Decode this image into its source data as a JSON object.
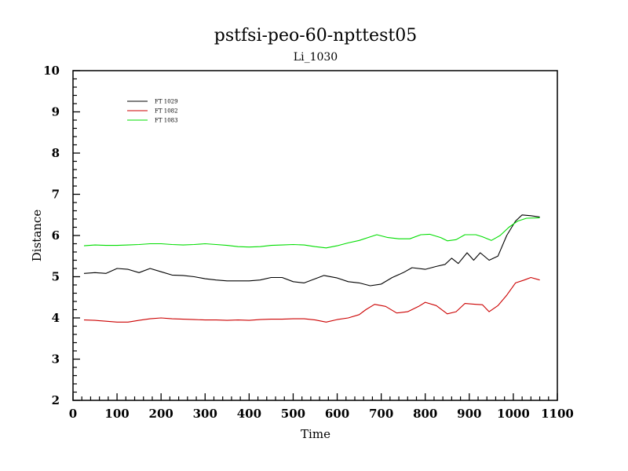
{
  "chart_data": {
    "type": "line",
    "title": "pstfsi-peo-60-npttest05",
    "subtitle": "Li_1030",
    "xlabel": "Time",
    "ylabel": "Distance",
    "xlim": [
      0,
      1100
    ],
    "ylim": [
      2,
      10
    ],
    "x_ticks": [
      "0",
      "100",
      "200",
      "300",
      "400",
      "500",
      "600",
      "700",
      "800",
      "900",
      "1000",
      "1100"
    ],
    "y_ticks": [
      "2",
      "3",
      "4",
      "5",
      "6",
      "7",
      "8",
      "9",
      "10"
    ],
    "legend_position": "top-left",
    "grid": false,
    "series": [
      {
        "name": "FT 1029",
        "color": "#000000",
        "points": [
          [
            25,
            5.08
          ],
          [
            50,
            5.1
          ],
          [
            75,
            5.08
          ],
          [
            100,
            5.2
          ],
          [
            125,
            5.18
          ],
          [
            150,
            5.1
          ],
          [
            175,
            5.2
          ],
          [
            200,
            5.12
          ],
          [
            225,
            5.04
          ],
          [
            250,
            5.03
          ],
          [
            275,
            5.0
          ],
          [
            300,
            4.95
          ],
          [
            325,
            4.92
          ],
          [
            350,
            4.9
          ],
          [
            375,
            4.9
          ],
          [
            400,
            4.9
          ],
          [
            425,
            4.92
          ],
          [
            450,
            4.98
          ],
          [
            475,
            4.98
          ],
          [
            500,
            4.88
          ],
          [
            525,
            4.85
          ],
          [
            550,
            4.95
          ],
          [
            570,
            5.03
          ],
          [
            600,
            4.97
          ],
          [
            625,
            4.88
          ],
          [
            650,
            4.85
          ],
          [
            675,
            4.78
          ],
          [
            700,
            4.82
          ],
          [
            725,
            4.98
          ],
          [
            750,
            5.1
          ],
          [
            770,
            5.22
          ],
          [
            800,
            5.18
          ],
          [
            825,
            5.25
          ],
          [
            845,
            5.3
          ],
          [
            860,
            5.45
          ],
          [
            875,
            5.32
          ],
          [
            895,
            5.58
          ],
          [
            910,
            5.4
          ],
          [
            925,
            5.58
          ],
          [
            945,
            5.4
          ],
          [
            965,
            5.5
          ],
          [
            985,
            6.0
          ],
          [
            1005,
            6.35
          ],
          [
            1020,
            6.5
          ],
          [
            1040,
            6.48
          ],
          [
            1060,
            6.45
          ]
        ]
      },
      {
        "name": "FT 1082",
        "color": "#cc0000",
        "points": [
          [
            25,
            3.95
          ],
          [
            50,
            3.94
          ],
          [
            75,
            3.92
          ],
          [
            100,
            3.9
          ],
          [
            125,
            3.9
          ],
          [
            150,
            3.94
          ],
          [
            175,
            3.98
          ],
          [
            200,
            4.0
          ],
          [
            225,
            3.98
          ],
          [
            250,
            3.97
          ],
          [
            275,
            3.96
          ],
          [
            300,
            3.95
          ],
          [
            325,
            3.95
          ],
          [
            350,
            3.94
          ],
          [
            375,
            3.95
          ],
          [
            400,
            3.94
          ],
          [
            425,
            3.96
          ],
          [
            450,
            3.97
          ],
          [
            475,
            3.97
          ],
          [
            500,
            3.98
          ],
          [
            525,
            3.98
          ],
          [
            550,
            3.95
          ],
          [
            575,
            3.9
          ],
          [
            600,
            3.96
          ],
          [
            625,
            4.0
          ],
          [
            650,
            4.08
          ],
          [
            665,
            4.2
          ],
          [
            685,
            4.33
          ],
          [
            710,
            4.28
          ],
          [
            735,
            4.12
          ],
          [
            760,
            4.15
          ],
          [
            785,
            4.28
          ],
          [
            800,
            4.38
          ],
          [
            825,
            4.3
          ],
          [
            850,
            4.1
          ],
          [
            870,
            4.15
          ],
          [
            890,
            4.35
          ],
          [
            915,
            4.33
          ],
          [
            930,
            4.32
          ],
          [
            945,
            4.15
          ],
          [
            965,
            4.3
          ],
          [
            985,
            4.55
          ],
          [
            1005,
            4.85
          ],
          [
            1025,
            4.92
          ],
          [
            1040,
            4.98
          ],
          [
            1060,
            4.92
          ]
        ]
      },
      {
        "name": "FT 1083",
        "color": "#00dd00",
        "points": [
          [
            25,
            5.75
          ],
          [
            50,
            5.77
          ],
          [
            75,
            5.76
          ],
          [
            100,
            5.76
          ],
          [
            125,
            5.77
          ],
          [
            150,
            5.78
          ],
          [
            175,
            5.8
          ],
          [
            200,
            5.8
          ],
          [
            225,
            5.78
          ],
          [
            250,
            5.77
          ],
          [
            275,
            5.78
          ],
          [
            300,
            5.8
          ],
          [
            325,
            5.78
          ],
          [
            350,
            5.76
          ],
          [
            375,
            5.73
          ],
          [
            400,
            5.72
          ],
          [
            425,
            5.73
          ],
          [
            450,
            5.76
          ],
          [
            475,
            5.77
          ],
          [
            500,
            5.78
          ],
          [
            525,
            5.77
          ],
          [
            550,
            5.73
          ],
          [
            575,
            5.7
          ],
          [
            600,
            5.75
          ],
          [
            625,
            5.82
          ],
          [
            650,
            5.88
          ],
          [
            670,
            5.95
          ],
          [
            690,
            6.02
          ],
          [
            715,
            5.95
          ],
          [
            740,
            5.92
          ],
          [
            765,
            5.92
          ],
          [
            790,
            6.02
          ],
          [
            810,
            6.03
          ],
          [
            835,
            5.95
          ],
          [
            850,
            5.87
          ],
          [
            870,
            5.9
          ],
          [
            890,
            6.02
          ],
          [
            915,
            6.02
          ],
          [
            930,
            5.97
          ],
          [
            950,
            5.88
          ],
          [
            970,
            6.0
          ],
          [
            990,
            6.2
          ],
          [
            1010,
            6.35
          ],
          [
            1030,
            6.42
          ],
          [
            1060,
            6.43
          ]
        ]
      }
    ]
  }
}
